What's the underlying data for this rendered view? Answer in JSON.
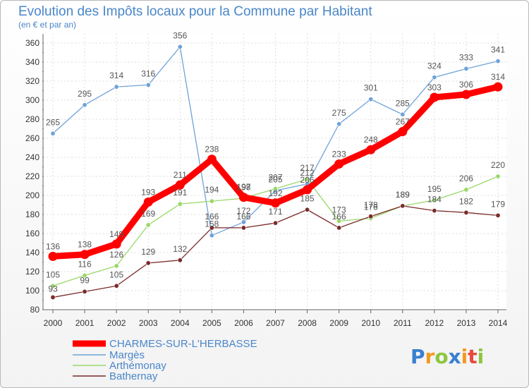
{
  "chart_data": {
    "type": "line",
    "title": "Evolution des Impôts locaux pour la Commune par Habitant",
    "subtitle": "(en € et par an)",
    "x": [
      "2000",
      "2001",
      "2002",
      "2003",
      "2004",
      "2005",
      "2006",
      "2007",
      "2008",
      "2009",
      "2010",
      "2011",
      "2012",
      "2013",
      "2014"
    ],
    "ylim": [
      80,
      360
    ],
    "yticks": [
      80,
      100,
      120,
      140,
      160,
      180,
      200,
      220,
      240,
      260,
      280,
      300,
      320,
      340,
      360
    ],
    "grid": true,
    "legend_position": "bottom-left",
    "series": [
      {
        "name": "CHARMES-SUR-L'HERBASSE",
        "color": "#ff0000",
        "values": [
          136,
          138,
          149,
          193,
          211,
          238,
          198,
          192,
          206,
          233,
          248,
          267,
          303,
          306,
          314
        ]
      },
      {
        "name": "Margès",
        "color": "#6fa2d8",
        "values": [
          265,
          295,
          314,
          316,
          356,
          158,
          172,
          205,
          212,
          275,
          301,
          285,
          324,
          333,
          341
        ]
      },
      {
        "name": "Arthémonay",
        "color": "#9ad86a",
        "values": [
          105,
          116,
          126,
          169,
          191,
          194,
          197,
          207,
          217,
          173,
          176,
          189,
          195,
          206,
          220
        ]
      },
      {
        "name": "Bathernay",
        "color": "#7a2a2a",
        "values": [
          93,
          99,
          105,
          129,
          132,
          166,
          166,
          171,
          185,
          166,
          178,
          189,
          184,
          182,
          179
        ]
      }
    ]
  },
  "logo": {
    "text": "Proxiti",
    "letters": [
      {
        "ch": "P",
        "color": "#3a7fd0"
      },
      {
        "ch": "r",
        "color": "#f29a1e"
      },
      {
        "ch": "o",
        "color": "#8cc63f"
      },
      {
        "ch": "x",
        "color": "#3a7fd0"
      },
      {
        "ch": "i",
        "color": "#f29a1e"
      },
      {
        "ch": "t",
        "color": "#e84a3c"
      },
      {
        "ch": "i",
        "color": "#8cc63f"
      }
    ]
  }
}
